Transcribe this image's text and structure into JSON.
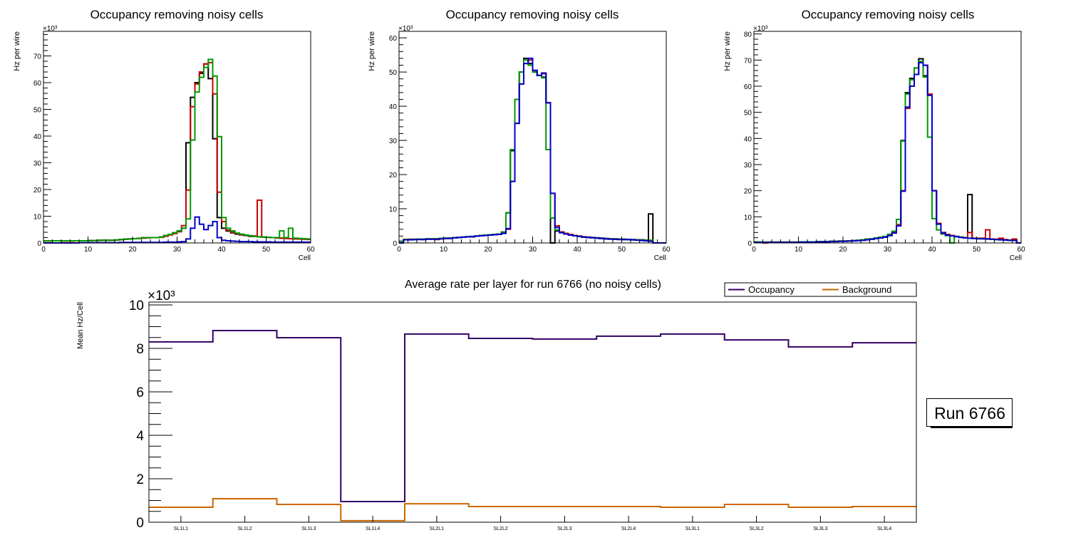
{
  "chart_data": [
    {
      "type": "histogram-step",
      "title": "Occupancy removing noisy cells",
      "xlabel": "Cell",
      "ylabel": "Hz per wire",
      "y_multiplier": "×10³",
      "xlim": [
        0,
        60
      ],
      "ylim": [
        0,
        79.2
      ],
      "x_ticks": [
        0,
        10,
        20,
        30,
        40,
        50,
        60
      ],
      "y_ticks": [
        0,
        10,
        20,
        30,
        40,
        50,
        60,
        70
      ],
      "bin_edges_start": 0,
      "bin_width": 1,
      "series": [
        {
          "name": "black",
          "color": "#000000",
          "values": [
            0.8,
            0.8,
            0.8,
            0.8,
            0.8,
            0.8,
            0.8,
            0.8,
            0.8,
            0.8,
            0.9,
            0.9,
            1.0,
            1.0,
            1.0,
            1.0,
            1.1,
            1.3,
            1.4,
            1.5,
            1.6,
            1.7,
            2.0,
            2.0,
            2.0,
            2.0,
            2.2,
            2.8,
            3.2,
            3.8,
            4.5,
            5.5,
            37.5,
            54.5,
            60,
            63.5,
            67,
            61.5,
            39,
            9.5,
            5.5,
            4.5,
            3.8,
            3.3,
            3.0,
            2.8,
            2.5,
            2.4,
            2.3,
            2.2,
            2.1,
            2.0,
            1.9,
            1.8,
            1.7,
            1.6,
            1.6,
            1.5,
            1.5,
            1.4
          ]
        },
        {
          "name": "red",
          "color": "#cc0000",
          "values": [
            0.7,
            0.7,
            0.8,
            0.8,
            0.7,
            0.7,
            0.7,
            0.8,
            0.8,
            0.8,
            0.8,
            0.9,
            0.9,
            1.0,
            1.0,
            1.0,
            1.1,
            1.2,
            1.4,
            1.5,
            1.6,
            1.7,
            1.8,
            1.9,
            2.0,
            2.0,
            2.1,
            2.5,
            3.0,
            3.5,
            4.2,
            6.5,
            19.8,
            51,
            59.5,
            64,
            67,
            67.5,
            55.8,
            19,
            8,
            4.8,
            4,
            3.5,
            3.1,
            2.9,
            2.7,
            2.6,
            16,
            2.2,
            2.1,
            2.0,
            1.9,
            1.8,
            1.7,
            1.6,
            1.5,
            1.5,
            1.4,
            1.3
          ]
        },
        {
          "name": "green",
          "color": "#009900",
          "values": [
            0.8,
            0.8,
            0.8,
            0.8,
            0.8,
            0.8,
            0.8,
            0.8,
            0.8,
            0.8,
            0.9,
            0.9,
            1.0,
            1.0,
            1.0,
            1.0,
            1.1,
            1.3,
            1.4,
            1.5,
            1.6,
            1.7,
            2.0,
            2.0,
            2.0,
            2.0,
            2.2,
            2.8,
            3.2,
            3.8,
            4.5,
            5.5,
            9,
            38.5,
            56.5,
            62,
            65.7,
            68.7,
            62.5,
            39.8,
            9.5,
            5.5,
            4.5,
            3.7,
            3.3,
            3.0,
            2.7,
            2.4,
            2.3,
            2.2,
            2.1,
            2.0,
            2.0,
            4.5,
            2.0,
            5.5,
            1.8,
            1.7,
            1.6,
            1.5
          ]
        },
        {
          "name": "blue",
          "color": "#0000cc",
          "values": [
            0,
            0,
            0,
            0,
            0,
            0,
            0,
            0,
            0.1,
            0.1,
            0.1,
            0.1,
            0.1,
            0.1,
            0.1,
            0.1,
            0.1,
            0.2,
            0.2,
            0.2,
            0.2,
            0.2,
            0.2,
            0.2,
            0.2,
            0.2,
            0.2,
            0.3,
            0.3,
            0.3,
            0.4,
            0.5,
            1.5,
            5.5,
            9.7,
            7,
            5,
            6.5,
            8,
            2,
            1,
            0.8,
            0.7,
            0.6,
            0.5,
            0.5,
            0.5,
            0.4,
            0.4,
            0.4,
            0.4,
            0.3,
            0.3,
            0.3,
            0.3,
            0.3,
            0.3,
            0.3,
            0.3,
            0.3
          ]
        }
      ]
    },
    {
      "type": "histogram-step",
      "title": "Occupancy removing noisy cells",
      "xlabel": "Cell",
      "ylabel": "Hz per wire",
      "y_multiplier": "×10³",
      "xlim": [
        0,
        60
      ],
      "ylim": [
        0,
        61.9
      ],
      "x_ticks": [
        0,
        10,
        20,
        30,
        40,
        50,
        60
      ],
      "y_ticks": [
        0,
        10,
        20,
        30,
        40,
        50,
        60
      ],
      "bin_edges_start": 0,
      "bin_width": 1,
      "series": [
        {
          "name": "black",
          "color": "#000000",
          "values": [
            0.5,
            1.0,
            1.0,
            1.0,
            1.1,
            1.1,
            1.2,
            1.2,
            1.2,
            1.3,
            1.4,
            1.4,
            1.5,
            1.6,
            1.7,
            1.8,
            1.9,
            2.0,
            2.2,
            2.3,
            2.4,
            2.5,
            2.6,
            3.0,
            8.8,
            27,
            42,
            50,
            54,
            52.5,
            50,
            49,
            48.5,
            41,
            0,
            3.5,
            3.2,
            2.8,
            2.5,
            2.2,
            2.0,
            1.8,
            1.7,
            1.6,
            1.5,
            1.4,
            1.3,
            1.2,
            1.2,
            1.1,
            1.1,
            1.0,
            1.0,
            0.9,
            0.9,
            0.8,
            8.5,
            0,
            0,
            0
          ]
        },
        {
          "name": "red",
          "color": "#cc0000",
          "values": [
            0.5,
            1.0,
            1.1,
            1.1,
            1.1,
            1.0,
            1.1,
            1.1,
            1.0,
            1.2,
            1.3,
            1.4,
            1.5,
            1.6,
            1.7,
            1.8,
            1.8,
            2.0,
            2.1,
            2.3,
            2.4,
            2.5,
            2.6,
            3.2,
            4,
            18,
            35,
            46.5,
            52.5,
            53.5,
            50.5,
            49,
            49.5,
            41,
            14.5,
            5,
            3.2,
            2.8,
            2.5,
            2.2,
            2.0,
            1.8,
            1.7,
            1.5,
            1.4,
            1.3,
            1.2,
            1.2,
            1.1,
            1.1,
            1.0,
            1.0,
            0.9,
            0.9,
            0.8,
            0.7,
            0.6,
            0,
            0,
            0
          ]
        },
        {
          "name": "green",
          "color": "#009900",
          "values": [
            0.5,
            1.0,
            1.0,
            1.0,
            1.1,
            1.1,
            1.2,
            1.2,
            1.2,
            1.3,
            1.4,
            1.4,
            1.5,
            1.6,
            1.7,
            1.8,
            1.9,
            2.0,
            2.2,
            2.3,
            2.4,
            2.5,
            2.6,
            3.2,
            8.8,
            27.3,
            42,
            50,
            53.5,
            52,
            50,
            49,
            48.3,
            27.3,
            7.3,
            3.8,
            3.0,
            2.6,
            2.3,
            2.1,
            1.9,
            1.7,
            1.6,
            1.5,
            1.4,
            1.3,
            1.2,
            1.2,
            1.1,
            1.1,
            1.0,
            1.0,
            0.9,
            0.9,
            0.8,
            0.7,
            0.8,
            0,
            0,
            0
          ]
        },
        {
          "name": "blue",
          "color": "#0000cc",
          "values": [
            0,
            0.9,
            0.9,
            1.0,
            1.0,
            1.0,
            1.1,
            1.1,
            1.1,
            1.2,
            1.3,
            1.3,
            1.5,
            1.6,
            1.7,
            1.8,
            1.8,
            2.0,
            2.1,
            2.2,
            2.3,
            2.4,
            2.5,
            2.8,
            4.2,
            18,
            35,
            46.5,
            52.5,
            54,
            50.5,
            49,
            49.7,
            41,
            14.5,
            4.5,
            3.0,
            2.6,
            2.3,
            2.1,
            1.9,
            1.7,
            1.6,
            1.5,
            1.4,
            1.3,
            1.2,
            1.1,
            1.1,
            1.0,
            1.0,
            1.0,
            0.9,
            0.8,
            0.7,
            0.6,
            0.5,
            0,
            0,
            0
          ]
        }
      ]
    },
    {
      "type": "histogram-step",
      "title": "Occupancy removing noisy cells",
      "xlabel": "Cell",
      "ylabel": "Hz per wire",
      "y_multiplier": "×10³",
      "xlim": [
        0,
        60
      ],
      "ylim": [
        0,
        81
      ],
      "x_ticks": [
        0,
        10,
        20,
        30,
        40,
        50,
        60
      ],
      "y_ticks": [
        0,
        10,
        20,
        30,
        40,
        50,
        60,
        70,
        80
      ],
      "bin_edges_start": 0,
      "bin_width": 1,
      "series": [
        {
          "name": "black",
          "color": "#000000",
          "values": [
            0.4,
            0.3,
            0.3,
            0.3,
            0.3,
            0.3,
            0.3,
            0.3,
            0.3,
            0.3,
            0.4,
            0.4,
            0.4,
            0.4,
            0.5,
            0.5,
            0.5,
            0.6,
            0.6,
            0.7,
            0.7,
            0.8,
            0.9,
            1.0,
            1.1,
            1.4,
            1.5,
            1.8,
            2.0,
            2.3,
            3.0,
            4.0,
            7.0,
            39.2,
            57.5,
            63,
            67,
            70.5,
            64,
            57,
            20,
            7.3,
            4,
            3.2,
            2.8,
            2.5,
            2.2,
            2.0,
            18.5,
            1.8,
            1.7,
            1.6,
            1.6,
            1.5,
            1.4,
            1.3,
            1.2,
            1.1,
            1.0,
            0
          ]
        },
        {
          "name": "red",
          "color": "#cc0000",
          "values": [
            0.4,
            0.3,
            0,
            0.3,
            0.3,
            0.3,
            0.3,
            0.3,
            0.3,
            0.3,
            0.4,
            0.4,
            0.4,
            0.4,
            0.5,
            0.5,
            0.5,
            0.6,
            0.6,
            0.7,
            0.7,
            0.8,
            0.9,
            1.0,
            1.1,
            1.4,
            1.5,
            1.8,
            2.0,
            2.3,
            3.0,
            4.0,
            7.0,
            20,
            51.5,
            60,
            64.5,
            69,
            68,
            57,
            20,
            7.5,
            4,
            3.2,
            2.8,
            2.5,
            2.2,
            2.0,
            4,
            1.8,
            1.8,
            1.8,
            5,
            1.5,
            1.4,
            1.8,
            1.3,
            1.1,
            1.5,
            0
          ]
        },
        {
          "name": "green",
          "color": "#009900",
          "values": [
            0.4,
            0.3,
            0.3,
            0.3,
            0.3,
            0.3,
            0.3,
            0.3,
            0.3,
            0.3,
            0.4,
            0.4,
            0.4,
            0.4,
            0.5,
            0.5,
            0.5,
            0.6,
            0.6,
            0.7,
            0.7,
            0.8,
            0.9,
            1.0,
            1.2,
            1.5,
            1.6,
            1.9,
            2.2,
            2.5,
            3.3,
            4.5,
            9,
            39,
            57,
            62.5,
            67,
            69.5,
            63.5,
            40.5,
            9.3,
            5,
            3.4,
            2.8,
            0,
            2.5,
            2.2,
            2.0,
            1.8,
            1.7,
            1.6,
            1.6,
            1.5,
            1.4,
            1.3,
            1.2,
            1.1,
            1.0,
            1.0,
            0
          ]
        },
        {
          "name": "blue",
          "color": "#0000cc",
          "values": [
            0.2,
            0.2,
            0.2,
            0.2,
            0.2,
            0.2,
            0.2,
            0.2,
            0.2,
            0.2,
            0.3,
            0.3,
            0.3,
            0.3,
            0.4,
            0.4,
            0.4,
            0.5,
            0.5,
            0.6,
            0.6,
            0.7,
            0.8,
            0.9,
            1.0,
            1.2,
            1.4,
            1.7,
            1.9,
            2.2,
            2.8,
            3.8,
            6.5,
            19.8,
            52,
            60,
            64.5,
            69,
            68,
            56.5,
            20,
            7.2,
            3.8,
            3.0,
            2.7,
            2.4,
            2.1,
            1.9,
            1.8,
            1.7,
            1.6,
            1.6,
            1.5,
            1.4,
            1.3,
            1.2,
            1.1,
            1.0,
            1.0,
            0
          ]
        }
      ]
    },
    {
      "type": "histogram-step",
      "title": "Average rate per layer for run 6766 (no noisy cells)",
      "xlabel": "",
      "ylabel": "Mean Hz/Cell",
      "y_multiplier": "×10³",
      "ylim": [
        0,
        10
      ],
      "y_ticks": [
        0,
        2,
        4,
        6,
        8,
        10
      ],
      "categories": [
        "SL1L1",
        "SL1L2",
        "SL1L3",
        "SL1L4",
        "SL2L1",
        "SL2L2",
        "SL2L3",
        "SL2L4",
        "SL3L1",
        "SL3L2",
        "SL3L3",
        "SL3L4"
      ],
      "legend": {
        "position": "top-right",
        "columns": 2
      },
      "series": [
        {
          "name": "Occupancy",
          "color": "#330066",
          "values": [
            8.3,
            8.82,
            8.49,
            0.95,
            8.66,
            8.46,
            8.43,
            8.56,
            8.66,
            8.39,
            8.07,
            8.26
          ]
        },
        {
          "name": "Background",
          "color": "#cc6600",
          "values": [
            0.69,
            1.08,
            0.82,
            0.07,
            0.85,
            0.72,
            0.72,
            0.72,
            0.69,
            0.82,
            0.69,
            0.72
          ]
        }
      ],
      "annotation": "Run 6766"
    }
  ]
}
